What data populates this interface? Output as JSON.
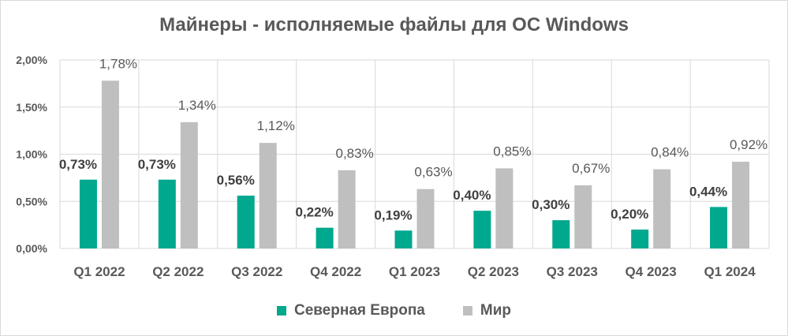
{
  "chart_data": {
    "type": "bar",
    "title": "Майнеры - исполняемые файлы для ОС Windows",
    "categories": [
      "Q1 2022",
      "Q2 2022",
      "Q3 2022",
      "Q4 2022",
      "Q1 2023",
      "Q2 2023",
      "Q3 2023",
      "Q4 2023",
      "Q1 2024"
    ],
    "series": [
      {
        "name": "Северная Европа",
        "color": "#00a88e",
        "values": [
          0.73,
          0.73,
          0.56,
          0.22,
          0.19,
          0.4,
          0.3,
          0.2,
          0.44
        ],
        "labels": [
          "0,73%",
          "0,73%",
          "0,56%",
          "0,22%",
          "0,19%",
          "0,40%",
          "0,30%",
          "0,20%",
          "0,44%"
        ]
      },
      {
        "name": "Мир",
        "color": "#bfbfbf",
        "values": [
          1.78,
          1.34,
          1.12,
          0.83,
          0.63,
          0.85,
          0.67,
          0.84,
          0.92
        ],
        "labels": [
          "1,78%",
          "1,34%",
          "1,12%",
          "0,83%",
          "0,63%",
          "0,85%",
          "0,67%",
          "0,84%",
          "0,92%"
        ]
      }
    ],
    "ylim": [
      0,
      2.0
    ],
    "yticks": [
      0,
      0.5,
      1.0,
      1.5,
      2.0
    ],
    "ytick_labels": [
      "0,00%",
      "0,50%",
      "1,00%",
      "1,50%",
      "2,00%"
    ],
    "grid": true,
    "legend": "bottom"
  }
}
